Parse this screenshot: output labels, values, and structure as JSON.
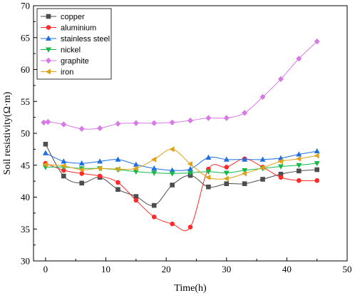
{
  "chart_data": {
    "type": "line",
    "xlabel": "Time(h)",
    "ylabel": "Soil resistivity(Ω·m)",
    "xlim": [
      -2,
      50
    ],
    "ylim": [
      30,
      70
    ],
    "xticks": [
      0,
      10,
      20,
      30,
      40,
      50
    ],
    "yticks": [
      30,
      35,
      40,
      45,
      50,
      55,
      60,
      65,
      70
    ],
    "grid": false,
    "legend_position": "top-left",
    "series": [
      {
        "name": "copper",
        "color": "#4d4d4d",
        "marker": "square",
        "x": [
          0,
          3,
          6,
          9,
          12,
          15,
          18,
          21,
          24,
          27,
          30,
          33,
          36,
          39,
          42,
          45
        ],
        "y": [
          48.3,
          43.3,
          42.2,
          43.1,
          41.2,
          40.1,
          38.7,
          41.9,
          43.4,
          41.6,
          42.1,
          42.1,
          42.8,
          43.6,
          44.1,
          44.3
        ]
      },
      {
        "name": "aluminium",
        "color": "#ff2a2a",
        "marker": "circle",
        "x": [
          0,
          3,
          6,
          9,
          12,
          15,
          18,
          21,
          24,
          27,
          30,
          33,
          36,
          39,
          42,
          45
        ],
        "y": [
          45.3,
          44.2,
          43.7,
          43.3,
          42.3,
          39.5,
          36.9,
          35.8,
          35.3,
          44.4,
          44.7,
          46.0,
          44.7,
          43.1,
          42.6,
          42.6
        ]
      },
      {
        "name": "stainless steel",
        "color": "#1f6fe0",
        "marker": "triangle-up",
        "x": [
          0,
          3,
          6,
          9,
          12,
          15,
          18,
          21,
          24,
          27,
          30,
          33,
          36,
          39,
          42,
          45
        ],
        "y": [
          46.9,
          45.6,
          45.3,
          45.6,
          45.9,
          45.1,
          44.5,
          44.2,
          44.4,
          46.2,
          45.9,
          45.9,
          45.9,
          46.1,
          46.7,
          47.2
        ]
      },
      {
        "name": "nickel",
        "color": "#16b84a",
        "marker": "triangle-down",
        "x": [
          0,
          3,
          6,
          9,
          12,
          15,
          18,
          21,
          24,
          27,
          30,
          33,
          36,
          39,
          42,
          45
        ],
        "y": [
          44.7,
          44.7,
          44.5,
          44.5,
          44.3,
          44.0,
          43.8,
          43.7,
          43.8,
          44.0,
          43.8,
          44.2,
          44.5,
          44.8,
          45.0,
          45.3
        ]
      },
      {
        "name": "graphite",
        "color": "#d67ae6",
        "marker": "diamond",
        "x": [
          -0.3,
          0.4,
          3,
          6,
          9,
          12,
          15,
          18,
          21,
          24,
          27,
          30,
          33,
          36,
          39,
          42,
          45
        ],
        "y": [
          51.7,
          51.8,
          51.4,
          50.7,
          50.8,
          51.5,
          51.6,
          51.6,
          51.7,
          52.0,
          52.4,
          52.4,
          53.2,
          55.7,
          58.5,
          61.7,
          64.4
        ]
      },
      {
        "name": "iron",
        "color": "#e0a21a",
        "marker": "triangle-left",
        "x": [
          0,
          3,
          6,
          9,
          12,
          15,
          18,
          21,
          24,
          27,
          30,
          33,
          36,
          39,
          42,
          45
        ],
        "y": [
          45.1,
          44.9,
          44.3,
          44.5,
          44.4,
          44.5,
          45.9,
          47.5,
          45.2,
          43.1,
          42.9,
          43.7,
          44.6,
          45.6,
          46.0,
          46.5
        ]
      }
    ]
  }
}
